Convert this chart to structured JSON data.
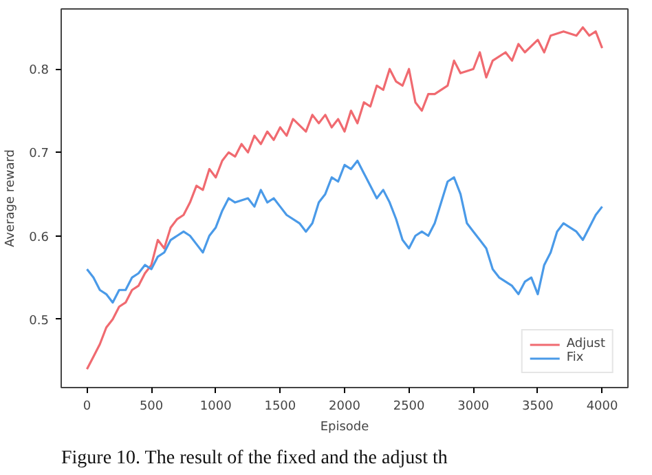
{
  "chart_data": {
    "type": "line",
    "xlabel": "Episode",
    "ylabel": "Average reward",
    "annotations": [
      "Figure 10. The result of the fixed and the adjust th"
    ],
    "xlim": [
      -200,
      4200
    ],
    "ylim": [
      0.418,
      0.872
    ],
    "xticks": [
      0,
      500,
      1000,
      1500,
      2000,
      2500,
      3000,
      3500,
      4000
    ],
    "yticks": [
      0.5,
      0.6,
      0.7,
      0.8
    ],
    "grid": false,
    "legend": "bottom right",
    "series": [
      {
        "name": "Adjust",
        "color": "#f06a70",
        "x": [
          0,
          50,
          100,
          150,
          200,
          250,
          300,
          350,
          400,
          450,
          500,
          550,
          600,
          650,
          700,
          750,
          800,
          850,
          900,
          950,
          1000,
          1050,
          1100,
          1150,
          1200,
          1250,
          1300,
          1350,
          1400,
          1450,
          1500,
          1550,
          1600,
          1700,
          1750,
          1800,
          1850,
          1900,
          1950,
          2000,
          2050,
          2100,
          2150,
          2200,
          2250,
          2300,
          2350,
          2400,
          2450,
          2500,
          2550,
          2600,
          2650,
          2700,
          2800,
          2850,
          2900,
          3000,
          3050,
          3100,
          3150,
          3250,
          3300,
          3350,
          3400,
          3500,
          3550,
          3600,
          3700,
          3800,
          3850,
          3900,
          3950,
          4000
        ],
        "values": [
          0.44,
          0.455,
          0.47,
          0.49,
          0.5,
          0.515,
          0.52,
          0.535,
          0.54,
          0.555,
          0.565,
          0.595,
          0.585,
          0.61,
          0.62,
          0.625,
          0.64,
          0.66,
          0.655,
          0.68,
          0.67,
          0.69,
          0.7,
          0.695,
          0.71,
          0.7,
          0.72,
          0.71,
          0.725,
          0.715,
          0.73,
          0.72,
          0.74,
          0.725,
          0.745,
          0.735,
          0.745,
          0.73,
          0.74,
          0.725,
          0.75,
          0.735,
          0.76,
          0.755,
          0.78,
          0.775,
          0.8,
          0.785,
          0.78,
          0.8,
          0.76,
          0.75,
          0.77,
          0.77,
          0.78,
          0.81,
          0.795,
          0.8,
          0.82,
          0.79,
          0.81,
          0.82,
          0.81,
          0.83,
          0.82,
          0.835,
          0.82,
          0.84,
          0.845,
          0.84,
          0.85,
          0.84,
          0.845,
          0.825
        ]
      },
      {
        "name": "Fix",
        "color": "#4a9ae8",
        "x": [
          0,
          50,
          100,
          150,
          200,
          250,
          300,
          350,
          400,
          450,
          500,
          550,
          600,
          650,
          700,
          750,
          800,
          850,
          900,
          950,
          1000,
          1050,
          1100,
          1150,
          1250,
          1300,
          1350,
          1400,
          1450,
          1500,
          1550,
          1650,
          1700,
          1750,
          1800,
          1850,
          1900,
          1950,
          2000,
          2050,
          2100,
          2150,
          2200,
          2250,
          2300,
          2350,
          2400,
          2450,
          2500,
          2550,
          2600,
          2650,
          2700,
          2750,
          2800,
          2850,
          2900,
          2950,
          3000,
          3050,
          3100,
          3150,
          3200,
          3250,
          3300,
          3350,
          3400,
          3450,
          3500,
          3550,
          3600,
          3650,
          3700,
          3750,
          3800,
          3850,
          3900,
          3950,
          4000
        ],
        "values": [
          0.56,
          0.55,
          0.535,
          0.53,
          0.52,
          0.535,
          0.535,
          0.55,
          0.555,
          0.565,
          0.56,
          0.575,
          0.58,
          0.595,
          0.6,
          0.605,
          0.6,
          0.59,
          0.58,
          0.6,
          0.61,
          0.63,
          0.645,
          0.64,
          0.645,
          0.635,
          0.655,
          0.64,
          0.645,
          0.635,
          0.625,
          0.615,
          0.605,
          0.615,
          0.64,
          0.65,
          0.67,
          0.665,
          0.685,
          0.68,
          0.69,
          0.675,
          0.66,
          0.645,
          0.655,
          0.64,
          0.62,
          0.595,
          0.585,
          0.6,
          0.605,
          0.6,
          0.615,
          0.64,
          0.665,
          0.67,
          0.65,
          0.615,
          0.605,
          0.595,
          0.585,
          0.56,
          0.55,
          0.545,
          0.54,
          0.53,
          0.545,
          0.55,
          0.53,
          0.565,
          0.58,
          0.605,
          0.615,
          0.61,
          0.605,
          0.595,
          0.61,
          0.625,
          0.635
        ]
      }
    ]
  }
}
